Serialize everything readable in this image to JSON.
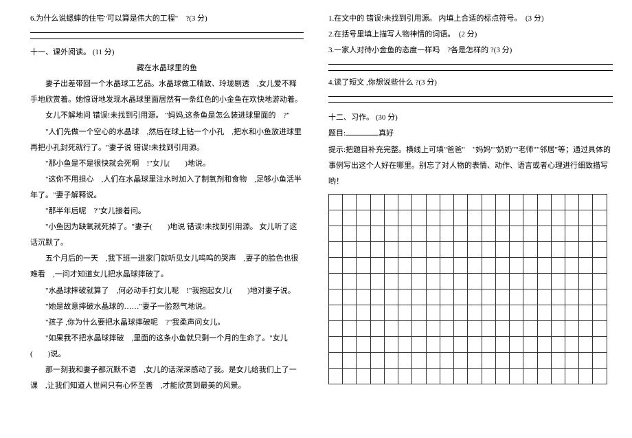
{
  "left": {
    "q6": "6.为什么说蟋蟀的住宅\"可以算是伟大的工程\"　?(3 分)",
    "section11_title": "十一、课外阅读。 (11 分)",
    "passage_title": "藏在水晶球里的鱼",
    "p1": "妻子出差带回一个水晶球工艺品。水晶球做工精致、玲珑剔透　,女儿爱不释手地欣赏着。她惊讶地发现水晶球里面居然有一条红色的小金鱼在欢快地游动着。",
    "p2": "女儿不解地问 错误!未找到引用源。 \"妈妈,这条鱼是怎么装进球里面的　?\"",
    "p3": "\"人们先做一个空心的水晶球　,然后在球上钻一个小孔　,把水和小鱼放进球里再把小孔封死就行了。\"妻子说 错误!未找到引用源。",
    "p4": "\"那小鱼是不是很快就会死啊　!\"女儿(　　)地说。",
    "p5": "\"这你不用担心　,人们在水晶球里注水时加入了制氧剂和食物　,足够小鱼活半年了。\"妻子解释说。",
    "p6": "\"那半年后呢　?\"女儿接着问。",
    "p7": "\"小鱼因为缺氧就死掉了。\"妻子(　　)地说 错误!未找到引用源。 女儿听了这话沉默了。",
    "p8": "五个月后的一天　,我下班一进家门就听见女儿呜呜的哭声　,妻子的脸色也很难看　,一问才知道女儿把水晶球摔破了。",
    "p9": "\"水晶球摔破就算了　,何必动手打女儿呢　!\"我抱起女儿(　　)地对妻子说。",
    "p10": "\"她是故意摔破水晶球的……\"妻子一脸怒气地说。",
    "p11": "\"孩子 ,你为什么要把水晶球摔破呢　?\"我柔声问女儿。",
    "p12": "\"如果我不把水晶球摔破　,里面的这条小鱼就只剩一个月的生命了。\"女儿(　　)说。",
    "p13": "那一刻我和妻子都沉默不语　,女儿的话深深感动了我。是女儿给我们上了一课　,让我们知道人世间只有心怀至善　,才能欣赏到最美的风景。"
  },
  "right": {
    "q1": "1.在文中的 错误!未找到引用源。 内填上合适的标点符号。　(3 分)",
    "q2": "2.在括号里填上描写人物神情的词语。　(2 分)",
    "q3": "3.一家人对待小金鱼的态度一样吗　?各是怎样的 ?(3 分)",
    "q4": "4.读了短文 ,你想说些什么 ?(3 分)",
    "section12_title": "十二、习作。 (30 分)",
    "topic_label": "题目:",
    "topic_suffix": "真好",
    "hint": "提示:把题目补充完整。横线上可填\"爸爸\"　\"妈妈\"\"奶奶\"\"老师\"\"邻居\"等；通过具体的事例写出这个人好在哪里。别忘了对人物的表情、动作、语言或者心理进行细致描写哟！",
    "grid": {
      "rows": 12,
      "cols": 20
    }
  },
  "style": {
    "font_size_pt": 11,
    "text_color": "#000000",
    "background": "#ffffff",
    "grid_border": "#333333"
  }
}
